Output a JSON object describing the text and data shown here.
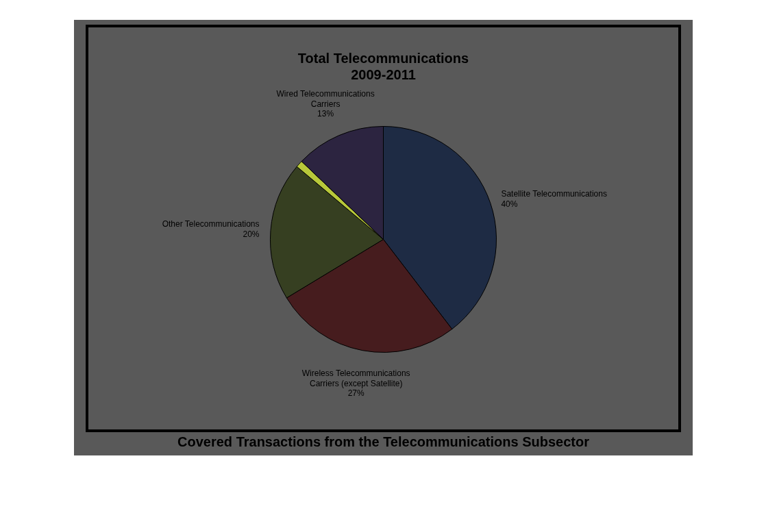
{
  "chart_data": {
    "type": "pie",
    "title": "Total Telecommunications\n2009-2011",
    "categories": [
      "Satellite Telecommunications",
      "Wireless Telecommunications Carriers (except Satellite)",
      "Other Telecommunications",
      null,
      "Wired Telecommunications Carriers"
    ],
    "values": [
      40,
      27,
      20,
      1,
      13
    ],
    "value_labels": [
      "40%",
      "27%",
      "20%",
      null,
      "13%"
    ],
    "colors": [
      "#1e2b44",
      "#461c1e",
      "#363f21",
      "#b8c83a",
      "#2c2440"
    ],
    "legend": false,
    "annotations": [
      "Covered Transactions from the Telecommunications Subsector"
    ]
  }
}
